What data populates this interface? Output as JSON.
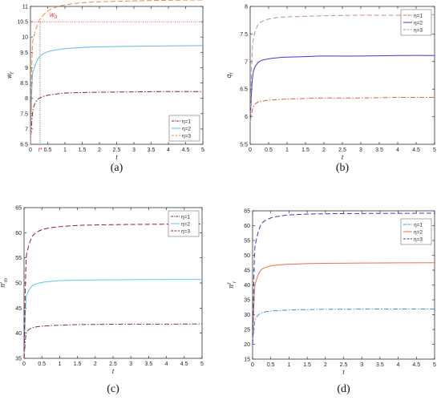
{
  "figure": {
    "panels": [
      "(a)",
      "(b)",
      "(c)",
      "(d)"
    ]
  },
  "colors": {
    "eta1_a": "#8a1c4a",
    "eta2_a": "#5fbde8",
    "eta3_a": "#f08a3c",
    "eta1_b": "#e0603a",
    "eta2_b": "#3a3ad6",
    "eta3_b": "#c08aa8",
    "eta1_c": "#7a2a6a",
    "eta2_c": "#62c8ee",
    "eta3_c": "#9a1a2a",
    "eta1_d": "#3a90d0",
    "eta2_d": "#e8743c",
    "eta3_d": "#3838cc",
    "annotation": "#e02020",
    "axis": "#333333"
  },
  "chart_data": [
    {
      "type": "line",
      "panel_label": "(a)",
      "title": "",
      "xlabel": "t",
      "ylabel": "w",
      "ylabel_sub": "f",
      "xlim": [
        0,
        5
      ],
      "ylim": [
        6.5,
        11
      ],
      "xticks": [
        "0",
        "0.5",
        "1",
        "1.5",
        "2",
        "2.5",
        "3",
        "3.5",
        "4",
        "4.5",
        "5"
      ],
      "yticks": [
        "6.5",
        "7",
        "7.5",
        "8",
        "8.5",
        "9",
        "9.5",
        "10",
        "10.5",
        "11"
      ],
      "legend": [
        "η=1",
        "η=2",
        "η=3"
      ],
      "legend_position": "bottom-right",
      "annotations": {
        "w0_label": "w",
        "w0_sub": "0",
        "w0_value": 10.5,
        "tstar_label": "t*",
        "tstar_value": 0.28
      },
      "series": [
        {
          "name": "η=1",
          "style": "dash-dot",
          "x": [
            0,
            0.05,
            0.1,
            0.2,
            0.3,
            0.5,
            0.75,
            1,
            1.5,
            2,
            3,
            4,
            5
          ],
          "y": [
            6.5,
            7.4,
            7.75,
            7.95,
            8.03,
            8.1,
            8.14,
            8.17,
            8.19,
            8.2,
            8.21,
            8.22,
            8.22
          ]
        },
        {
          "name": "η=2",
          "style": "solid",
          "x": [
            0,
            0.05,
            0.1,
            0.2,
            0.3,
            0.5,
            0.75,
            1,
            1.5,
            2,
            3,
            4,
            5
          ],
          "y": [
            6.5,
            8.6,
            8.95,
            9.25,
            9.4,
            9.52,
            9.58,
            9.62,
            9.66,
            9.68,
            9.7,
            9.71,
            9.72
          ]
        },
        {
          "name": "η=3",
          "style": "dashed",
          "x": [
            0,
            0.05,
            0.1,
            0.2,
            0.3,
            0.5,
            0.75,
            1,
            1.5,
            2,
            3,
            4,
            5
          ],
          "y": [
            6.5,
            9.5,
            10.0,
            10.4,
            10.62,
            10.85,
            10.98,
            11.05,
            11.12,
            11.15,
            11.18,
            11.2,
            11.21
          ]
        }
      ]
    },
    {
      "type": "line",
      "panel_label": "(b)",
      "title": "",
      "xlabel": "t",
      "ylabel": "q",
      "ylabel_sub": "f",
      "xlim": [
        0,
        5
      ],
      "ylim": [
        5.5,
        8
      ],
      "xticks": [
        "0",
        "0.5",
        "1",
        "1.5",
        "2",
        "2.5",
        "3",
        "3.5",
        "4",
        "4.5",
        "5"
      ],
      "yticks": [
        "5.5",
        "6",
        "6.5",
        "7",
        "7.5",
        "8"
      ],
      "legend": [
        "η=1",
        "η=2",
        "η=3"
      ],
      "legend_position": "top-right",
      "series": [
        {
          "name": "η=1",
          "style": "dash-dot",
          "x": [
            0,
            0.05,
            0.1,
            0.2,
            0.3,
            0.5,
            0.75,
            1,
            1.5,
            2,
            3,
            4,
            5
          ],
          "y": [
            5.9,
            6.1,
            6.2,
            6.26,
            6.28,
            6.3,
            6.31,
            6.32,
            6.33,
            6.34,
            6.34,
            6.35,
            6.35
          ]
        },
        {
          "name": "η=2",
          "style": "solid",
          "x": [
            0,
            0.05,
            0.1,
            0.2,
            0.3,
            0.5,
            0.75,
            1,
            1.5,
            2,
            3,
            4,
            5
          ],
          "y": [
            5.9,
            6.6,
            6.85,
            6.97,
            7.02,
            7.05,
            7.07,
            7.08,
            7.09,
            7.1,
            7.1,
            7.11,
            7.11
          ]
        },
        {
          "name": "η=3",
          "style": "dashed",
          "x": [
            0,
            0.05,
            0.1,
            0.2,
            0.3,
            0.5,
            0.75,
            1,
            1.5,
            2,
            3,
            4,
            5
          ],
          "y": [
            5.9,
            7.1,
            7.45,
            7.65,
            7.72,
            7.77,
            7.8,
            7.81,
            7.82,
            7.83,
            7.84,
            7.84,
            7.85
          ]
        }
      ]
    },
    {
      "type": "line",
      "panel_label": "(c)",
      "title": "",
      "xlabel": "t",
      "ylabel": "π",
      "ylabel_sub": "m",
      "ylabel_sup": "f",
      "xlim": [
        0,
        5
      ],
      "ylim": [
        35,
        65
      ],
      "xticks": [
        "0",
        "0.5",
        "1",
        "1.5",
        "2",
        "2.5",
        "3",
        "3.5",
        "4",
        "4.5",
        "5"
      ],
      "yticks": [
        "35",
        "40",
        "45",
        "50",
        "55",
        "60",
        "65"
      ],
      "legend": [
        "η=1",
        "η=2",
        "η=3"
      ],
      "legend_position": "top-right",
      "series": [
        {
          "name": "η=1",
          "style": "dash-dot",
          "x": [
            0,
            0.05,
            0.1,
            0.2,
            0.3,
            0.5,
            0.75,
            1,
            1.5,
            2,
            3,
            4,
            5
          ],
          "y": [
            35,
            39.5,
            40.5,
            41.0,
            41.2,
            41.4,
            41.5,
            41.6,
            41.7,
            41.75,
            41.8,
            41.8,
            41.85
          ]
        },
        {
          "name": "η=2",
          "style": "solid",
          "x": [
            0,
            0.05,
            0.1,
            0.2,
            0.3,
            0.5,
            0.75,
            1,
            1.5,
            2,
            3,
            4,
            5
          ],
          "y": [
            35,
            46.0,
            48.0,
            49.2,
            49.7,
            50.1,
            50.3,
            50.45,
            50.55,
            50.6,
            50.65,
            50.7,
            50.7
          ]
        },
        {
          "name": "η=3",
          "style": "dashed",
          "x": [
            0,
            0.05,
            0.1,
            0.2,
            0.3,
            0.5,
            0.75,
            1,
            1.5,
            2,
            3,
            4,
            5
          ],
          "y": [
            35,
            53.0,
            56.5,
            58.8,
            59.8,
            60.6,
            61.0,
            61.2,
            61.45,
            61.55,
            61.65,
            61.7,
            61.75
          ]
        }
      ]
    },
    {
      "type": "line",
      "panel_label": "(d)",
      "title": "",
      "xlabel": "t",
      "ylabel": "π",
      "ylabel_sub": "r",
      "ylabel_sup": "f",
      "xlim": [
        0,
        5
      ],
      "ylim": [
        15,
        65
      ],
      "xticks": [
        "0",
        "0.5",
        "1",
        "1.5",
        "2",
        "2.5",
        "3",
        "3.5",
        "4",
        "4.5",
        "5"
      ],
      "yticks": [
        "15",
        "20",
        "25",
        "30",
        "35",
        "40",
        "45",
        "50",
        "55",
        "60",
        "65"
      ],
      "legend": [
        "η=1",
        "η=2",
        "η=3"
      ],
      "legend_position": "right",
      "series": [
        {
          "name": "η=1",
          "style": "dash-dot",
          "x": [
            0,
            0.05,
            0.1,
            0.2,
            0.3,
            0.5,
            0.75,
            1,
            1.5,
            2,
            3,
            4,
            5
          ],
          "y": [
            20,
            27.0,
            29.0,
            30.3,
            30.8,
            31.2,
            31.4,
            31.55,
            31.7,
            31.8,
            31.85,
            31.9,
            31.9
          ]
        },
        {
          "name": "η=2",
          "style": "solid",
          "x": [
            0,
            0.05,
            0.1,
            0.2,
            0.3,
            0.5,
            0.75,
            1,
            1.5,
            2,
            3,
            4,
            5
          ],
          "y": [
            20,
            37.5,
            41.5,
            44.5,
            45.6,
            46.4,
            46.8,
            47.0,
            47.2,
            47.3,
            47.4,
            47.45,
            47.5
          ]
        },
        {
          "name": "η=3",
          "style": "dashed",
          "x": [
            0,
            0.05,
            0.1,
            0.2,
            0.3,
            0.5,
            0.75,
            1,
            1.5,
            2,
            3,
            4,
            5
          ],
          "y": [
            20,
            49.0,
            55.0,
            59.5,
            61.3,
            62.6,
            63.2,
            63.6,
            63.9,
            64.0,
            64.1,
            64.15,
            64.2
          ]
        }
      ]
    }
  ]
}
